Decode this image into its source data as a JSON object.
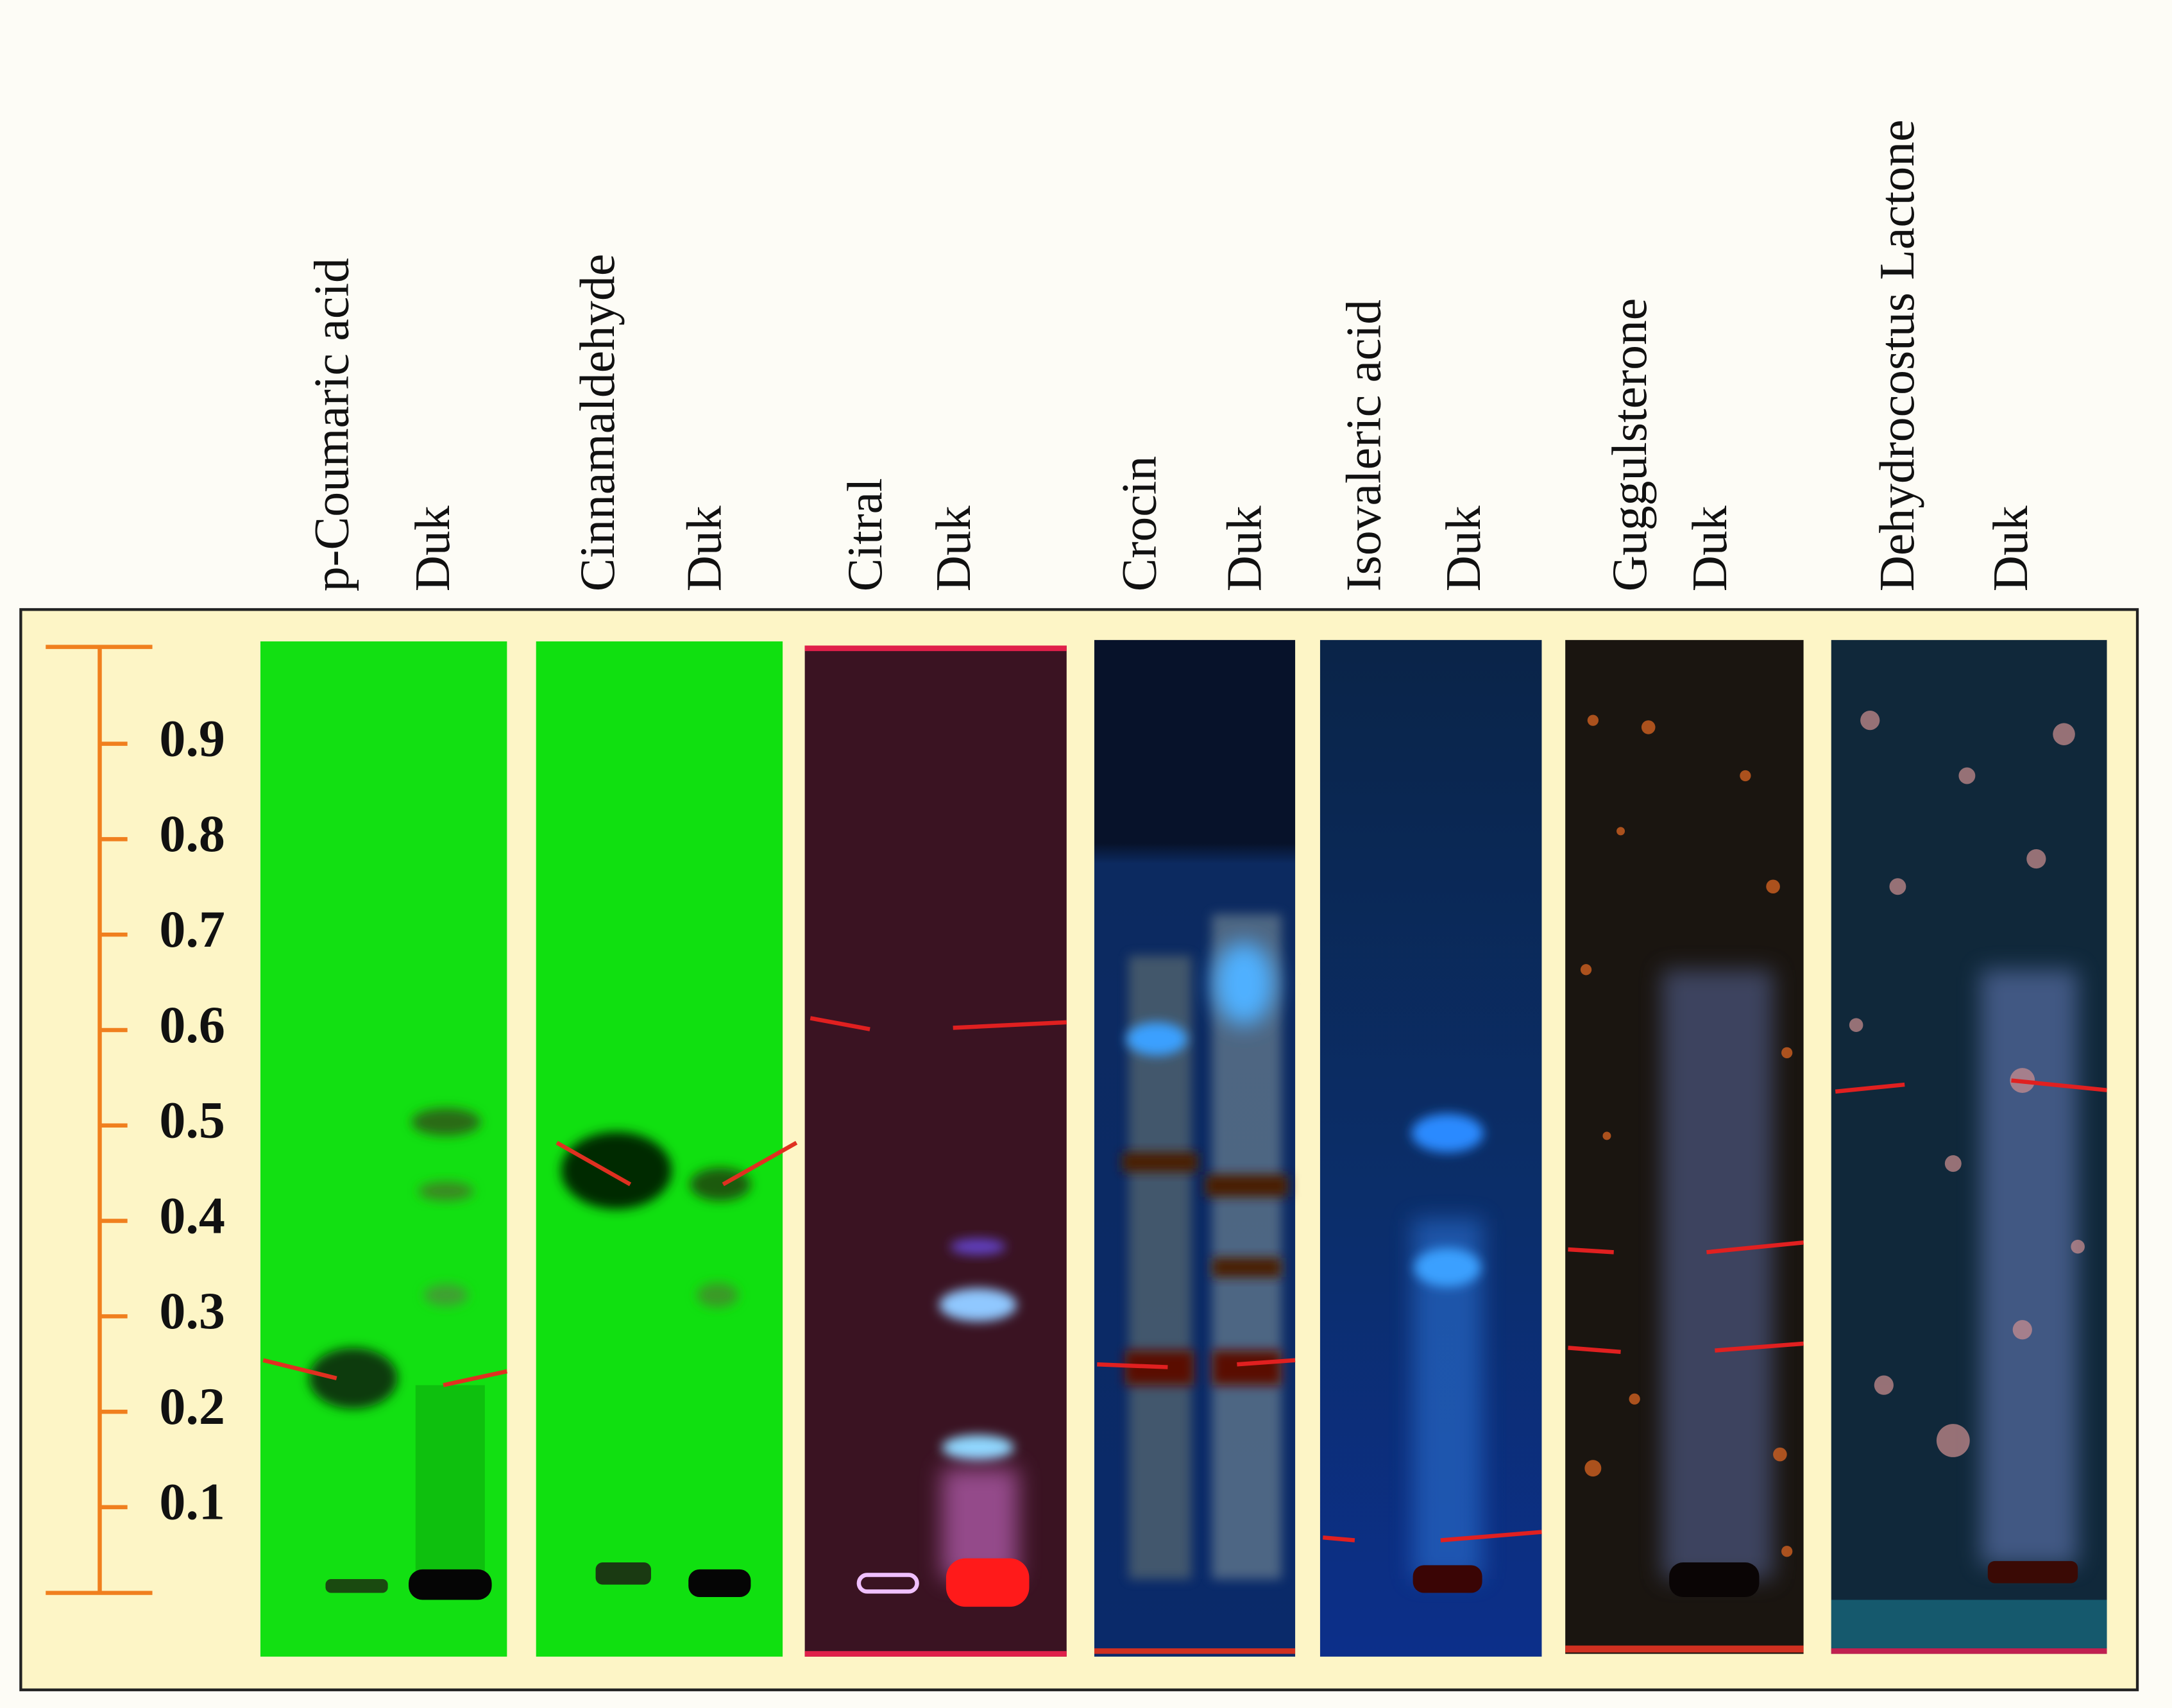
{
  "lane_labels": [
    "p-Coumaric acid",
    "Duk",
    "Cinnamaldehyde",
    "Duk",
    "Citral",
    "Duk",
    "Crocin",
    "Duk",
    "Isovaleric acid",
    "Duk",
    "Guggulsterone",
    "Duk",
    "Dehydrocostus Lactone",
    "Duk"
  ],
  "rf_scale": {
    "ticks": [
      0.9,
      0.8,
      0.7,
      0.6,
      0.5,
      0.4,
      0.3,
      0.2,
      0.1
    ]
  }
}
